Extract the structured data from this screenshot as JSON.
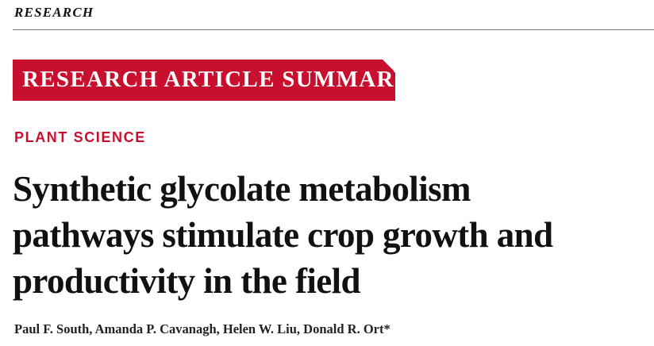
{
  "header": {
    "section": "RESEARCH"
  },
  "banner": {
    "label": "RESEARCH ARTICLE SUMMARY",
    "color": "#c8102e"
  },
  "article": {
    "category": "PLANT SCIENCE",
    "title_lines": [
      "Synthetic glycolate metabolism",
      "pathways stimulate crop growth and",
      "productivity in the field"
    ],
    "authors": "Paul F. South, Amanda P. Cavanagh, Helen W. Liu, Donald R. Ort*"
  }
}
